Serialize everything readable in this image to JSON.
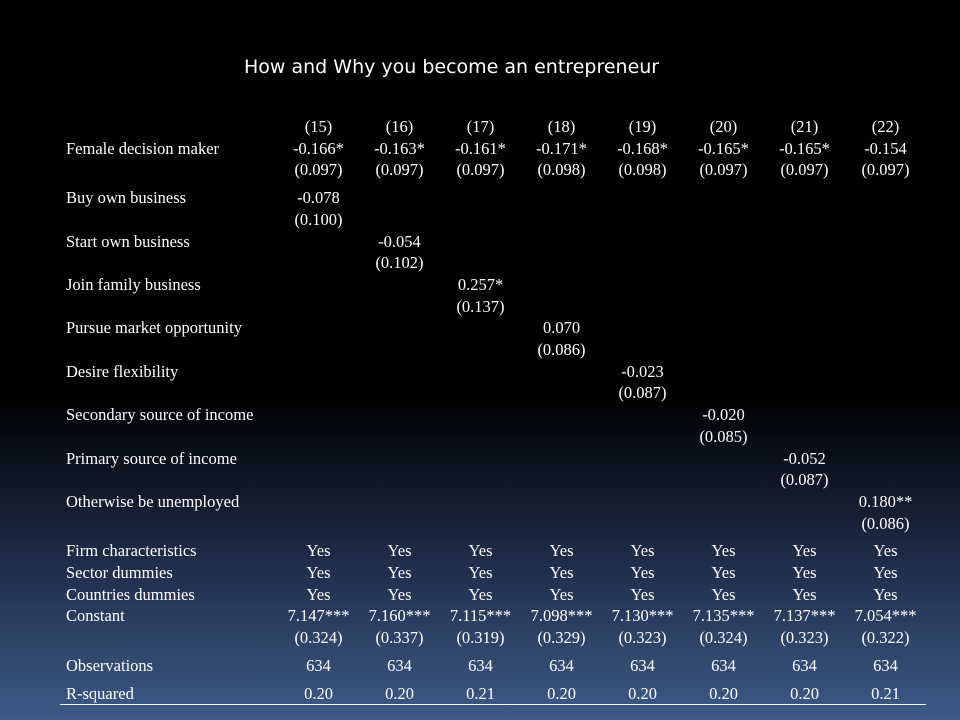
{
  "title": "How and Why you become an entrepreneur",
  "columns": [
    "(15)",
    "(16)",
    "(17)",
    "(18)",
    "(19)",
    "(20)",
    "(21)",
    "(22)"
  ],
  "rows": [
    {
      "name": "female-decision-maker-coef",
      "label": "Female decision maker",
      "cells": [
        "-0.166*",
        "-0.163*",
        "-0.161*",
        "-0.171*",
        "-0.168*",
        "-0.165*",
        "-0.165*",
        "-0.154"
      ]
    },
    {
      "name": "female-decision-maker-se",
      "label": "",
      "cells": [
        "(0.097)",
        "(0.097)",
        "(0.097)",
        "(0.098)",
        "(0.098)",
        "(0.097)",
        "(0.097)",
        "(0.097)"
      ]
    },
    {
      "name": "buy-own-business-coef",
      "label": "Buy own business",
      "cells": [
        "-0.078",
        "",
        "",
        "",
        "",
        "",
        "",
        ""
      ]
    },
    {
      "name": "buy-own-business-se",
      "label": "",
      "cells": [
        "(0.100)",
        "",
        "",
        "",
        "",
        "",
        "",
        ""
      ]
    },
    {
      "name": "start-own-business-coef",
      "label": "Start own business",
      "cells": [
        "",
        "-0.054",
        "",
        "",
        "",
        "",
        "",
        ""
      ]
    },
    {
      "name": "start-own-business-se",
      "label": "",
      "cells": [
        "",
        "(0.102)",
        "",
        "",
        "",
        "",
        "",
        ""
      ]
    },
    {
      "name": "join-family-business-coef",
      "label": "Join family business",
      "cells": [
        "",
        "",
        "0.257*",
        "",
        "",
        "",
        "",
        ""
      ]
    },
    {
      "name": "join-family-business-se",
      "label": "",
      "cells": [
        "",
        "",
        "(0.137)",
        "",
        "",
        "",
        "",
        ""
      ]
    },
    {
      "name": "pursue-market-opportunity-coef",
      "label": "Pursue market opportunity",
      "cells": [
        "",
        "",
        "",
        "0.070",
        "",
        "",
        "",
        ""
      ]
    },
    {
      "name": "pursue-market-opportunity-se",
      "label": "",
      "cells": [
        "",
        "",
        "",
        "(0.086)",
        "",
        "",
        "",
        ""
      ]
    },
    {
      "name": "desire-flexibility-coef",
      "label": "Desire flexibility",
      "cells": [
        "",
        "",
        "",
        "",
        "-0.023",
        "",
        "",
        ""
      ]
    },
    {
      "name": "desire-flexibility-se",
      "label": "",
      "cells": [
        "",
        "",
        "",
        "",
        "(0.087)",
        "",
        "",
        ""
      ]
    },
    {
      "name": "secondary-source-of-income-coef",
      "label": "Secondary source of income",
      "cells": [
        "",
        "",
        "",
        "",
        "",
        "-0.020",
        "",
        ""
      ]
    },
    {
      "name": "secondary-source-of-income-se",
      "label": "",
      "cells": [
        "",
        "",
        "",
        "",
        "",
        "(0.085)",
        "",
        ""
      ]
    },
    {
      "name": "primary-source-of-income-coef",
      "label": "Primary source of income",
      "cells": [
        "",
        "",
        "",
        "",
        "",
        "",
        "-0.052",
        ""
      ]
    },
    {
      "name": "primary-source-of-income-se",
      "label": "",
      "cells": [
        "",
        "",
        "",
        "",
        "",
        "",
        "(0.087)",
        ""
      ]
    },
    {
      "name": "otherwise-be-unemployed-coef",
      "label": "Otherwise be unemployed",
      "cells": [
        "",
        "",
        "",
        "",
        "",
        "",
        "",
        "0.180**"
      ]
    },
    {
      "name": "otherwise-be-unemployed-se",
      "label": "",
      "cells": [
        "",
        "",
        "",
        "",
        "",
        "",
        "",
        "(0.086)"
      ]
    },
    {
      "name": "firm-characteristics",
      "label": "Firm characteristics",
      "cells": [
        "Yes",
        "Yes",
        "Yes",
        "Yes",
        "Yes",
        "Yes",
        "Yes",
        "Yes"
      ]
    },
    {
      "name": "sector-dummies",
      "label": "Sector dummies",
      "cells": [
        "Yes",
        "Yes",
        "Yes",
        "Yes",
        "Yes",
        "Yes",
        "Yes",
        "Yes"
      ]
    },
    {
      "name": "countries-dummies",
      "label": "Countries dummies",
      "cells": [
        "Yes",
        "Yes",
        "Yes",
        "Yes",
        "Yes",
        "Yes",
        "Yes",
        "Yes"
      ]
    },
    {
      "name": "constant-coef",
      "label": "Constant",
      "cells": [
        "7.147***",
        "7.160***",
        "7.115***",
        "7.098***",
        "7.130***",
        "7.135***",
        "7.137***",
        "7.054***"
      ]
    },
    {
      "name": "constant-se",
      "label": "",
      "cells": [
        "(0.324)",
        "(0.337)",
        "(0.319)",
        "(0.329)",
        "(0.323)",
        "(0.324)",
        "(0.323)",
        "(0.322)"
      ]
    },
    {
      "name": "observations",
      "label": "Observations",
      "cells": [
        "634",
        "634",
        "634",
        "634",
        "634",
        "634",
        "634",
        "634"
      ]
    },
    {
      "name": "r-squared",
      "label": "R-squared",
      "cells": [
        "0.20",
        "0.20",
        "0.21",
        "0.20",
        "0.20",
        "0.20",
        "0.20",
        "0.21"
      ]
    }
  ]
}
